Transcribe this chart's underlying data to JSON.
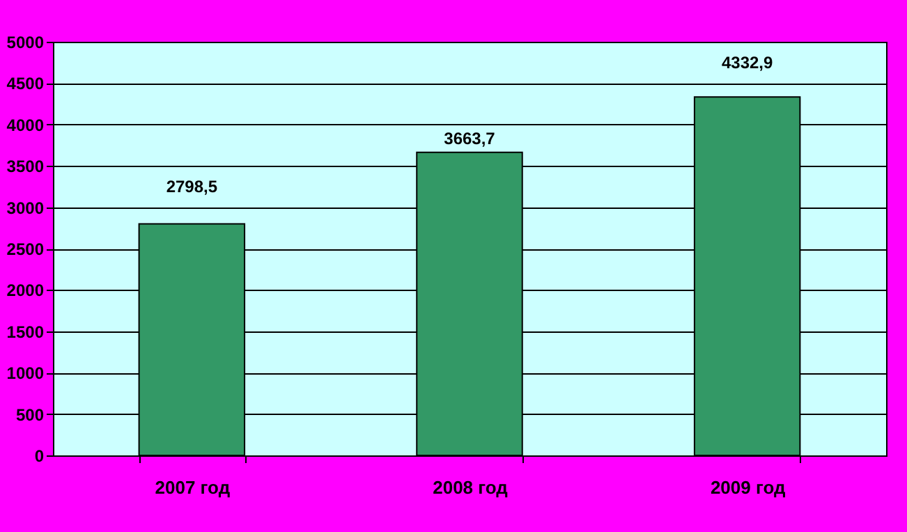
{
  "chart_data": {
    "type": "bar",
    "categories": [
      "2007 год",
      "2008 год",
      "2009 год",
      null
    ],
    "values": [
      2798.5,
      3663.7,
      4332.9,
      null
    ],
    "value_labels": [
      "2798,5",
      "3663,7",
      "4332,9",
      null
    ],
    "color": "#339966",
    "ylim": [
      0,
      5000
    ],
    "yticks": [
      0,
      500,
      1000,
      1500,
      2000,
      2500,
      3000,
      3500,
      4000,
      4500,
      5000
    ],
    "grid": "y"
  }
}
